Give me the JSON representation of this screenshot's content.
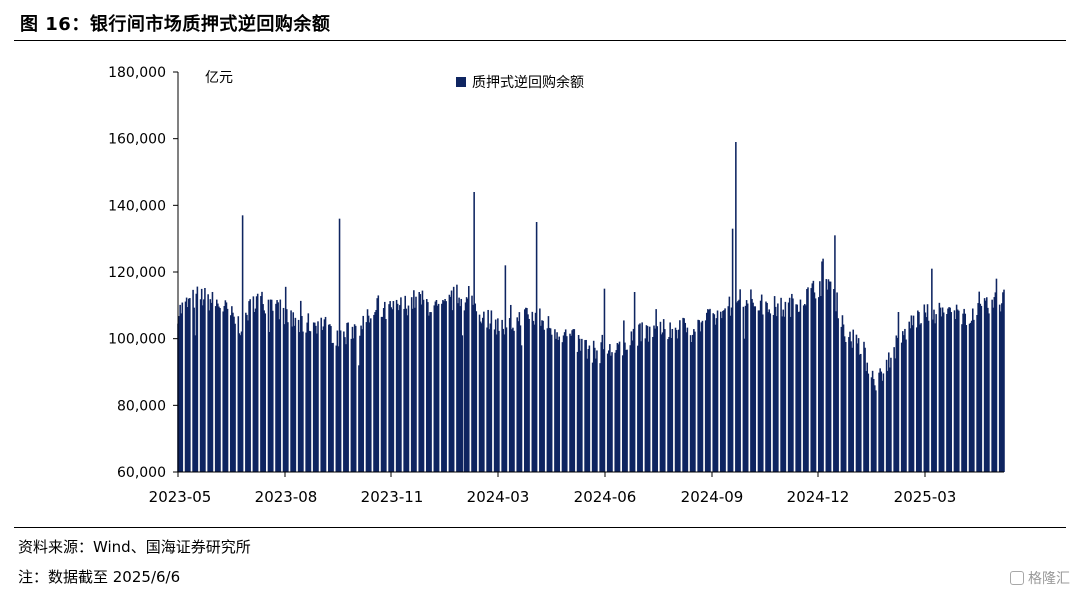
{
  "figure": {
    "title": "图 16：银行间市场质押式逆回购余额",
    "source": "资料来源：Wind、国海证券研究所",
    "note": "注：数据截至 2025/6/6",
    "watermark": "格隆汇"
  },
  "chart_data": {
    "type": "bar",
    "color": "#0f2561",
    "unit_label": "亿元",
    "legend": [
      {
        "name": "质押式逆回购余额",
        "color": "#0f2561"
      }
    ],
    "ylim": [
      60000,
      180000
    ],
    "yticks": [
      "60,000",
      "80,000",
      "100,000",
      "120,000",
      "140,000",
      "160,000",
      "180,000"
    ],
    "ytick_values": [
      60000,
      80000,
      100000,
      120000,
      140000,
      160000,
      180000
    ],
    "xticks": [
      "2023-05",
      "2023-08",
      "2023-11",
      "2024-03",
      "2024-06",
      "2024-09",
      "2024-12",
      "2025-03"
    ],
    "anchors": [
      [
        "2023-05-01",
        108000
      ],
      [
        "2023-05-20",
        113000
      ],
      [
        "2023-06-10",
        110000
      ],
      [
        "2023-06-28",
        104000
      ],
      [
        "2023-07-12",
        112000
      ],
      [
        "2023-07-31",
        110000
      ],
      [
        "2023-08-20",
        104000
      ],
      [
        "2023-09-10",
        105000
      ],
      [
        "2023-09-28",
        100000
      ],
      [
        "2023-10-15",
        104000
      ],
      [
        "2023-11-01",
        107000
      ],
      [
        "2023-11-20",
        109000
      ],
      [
        "2023-12-10",
        112000
      ],
      [
        "2023-12-31",
        108000
      ],
      [
        "2024-01-15",
        113000
      ],
      [
        "2024-02-05",
        108000
      ],
      [
        "2024-02-28",
        103000
      ],
      [
        "2024-03-20",
        107000
      ],
      [
        "2024-04-10",
        104000
      ],
      [
        "2024-04-30",
        100000
      ],
      [
        "2024-05-20",
        96000
      ],
      [
        "2024-06-05",
        96000
      ],
      [
        "2024-06-25",
        101000
      ],
      [
        "2024-07-15",
        102000
      ],
      [
        "2024-08-05",
        103000
      ],
      [
        "2024-08-25",
        104000
      ],
      [
        "2024-09-15",
        107000
      ],
      [
        "2024-10-05",
        113000
      ],
      [
        "2024-10-25",
        110000
      ],
      [
        "2024-11-15",
        109000
      ],
      [
        "2024-12-05",
        113000
      ],
      [
        "2024-12-25",
        118000
      ],
      [
        "2025-01-10",
        103000
      ],
      [
        "2025-01-25",
        96000
      ],
      [
        "2025-02-08",
        87000
      ],
      [
        "2025-02-25",
        97000
      ],
      [
        "2025-03-15",
        106000
      ],
      [
        "2025-04-05",
        108000
      ],
      [
        "2025-04-25",
        107000
      ],
      [
        "2025-05-15",
        108000
      ],
      [
        "2025-06-06",
        112000
      ]
    ],
    "spikes": [
      [
        "2023-06-30",
        137000
      ],
      [
        "2023-09-28",
        136000
      ],
      [
        "2024-01-31",
        144000
      ],
      [
        "2024-03-29",
        135000
      ],
      [
        "2024-02-29",
        122000
      ],
      [
        "2024-05-31",
        115000
      ],
      [
        "2024-06-28",
        114000
      ],
      [
        "2024-09-30",
        159000
      ],
      [
        "2024-09-27",
        133000
      ],
      [
        "2024-12-31",
        131000
      ],
      [
        "2024-12-20",
        124000
      ],
      [
        "2025-02-28",
        108000
      ],
      [
        "2025-03-31",
        121000
      ],
      [
        "2025-05-30",
        118000
      ]
    ],
    "dips": [
      [
        "2023-05-17",
        101000
      ],
      [
        "2023-07-25",
        102000
      ],
      [
        "2023-10-16",
        92000
      ],
      [
        "2024-01-20",
        101000
      ],
      [
        "2024-03-15",
        98000
      ],
      [
        "2024-05-15",
        94000
      ],
      [
        "2024-06-17",
        95000
      ],
      [
        "2024-08-20",
        99000
      ],
      [
        "2024-10-08",
        100000
      ],
      [
        "2025-01-10",
        99000
      ],
      [
        "2025-02-06",
        86000
      ]
    ]
  }
}
